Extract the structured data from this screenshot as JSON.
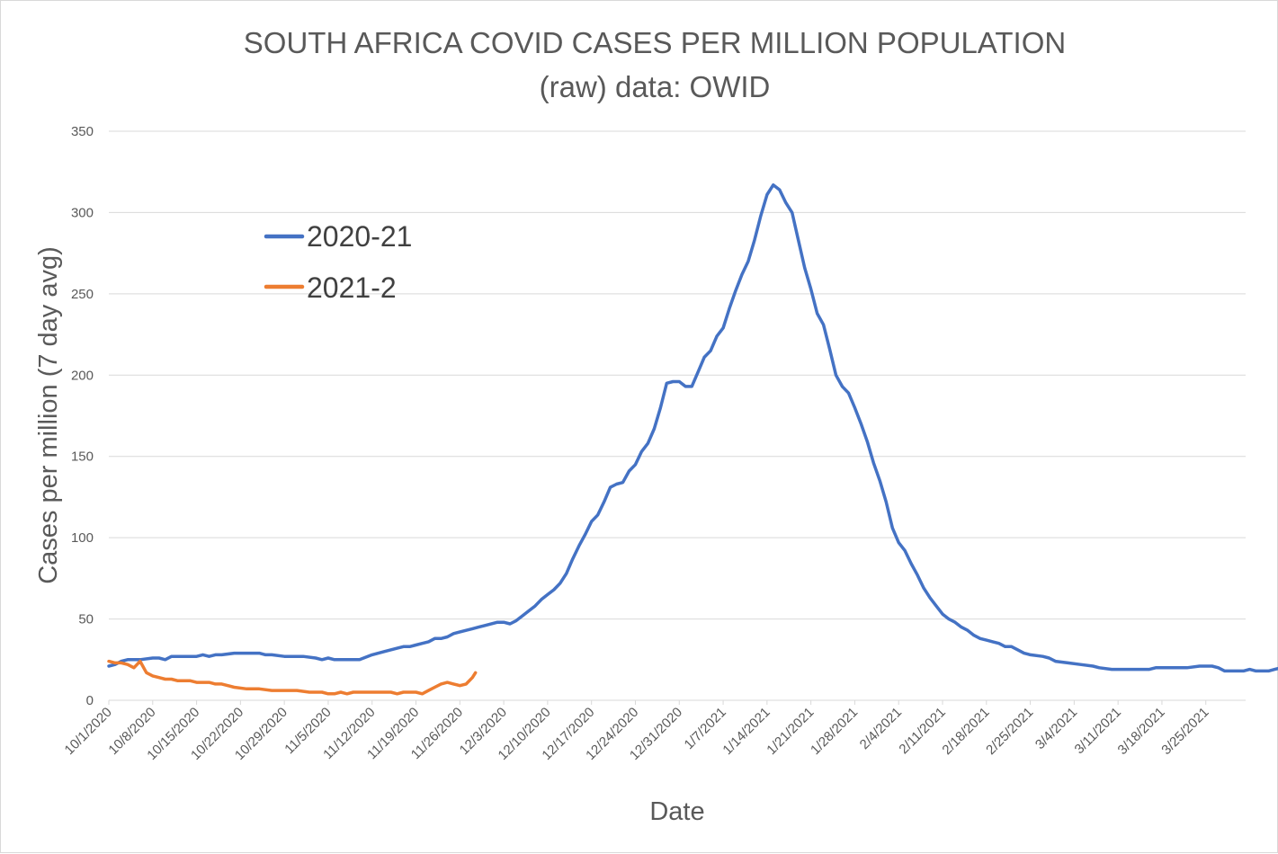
{
  "chart_data": {
    "type": "line",
    "title": "SOUTH AFRICA COVID CASES PER MILLION POPULATION",
    "subtitle": "(raw)  data: OWID",
    "xlabel": "Date",
    "ylabel": "Cases per million (7 day avg)",
    "ylim": [
      0,
      350
    ],
    "yticks": [
      0,
      50,
      100,
      150,
      200,
      250,
      300,
      350
    ],
    "grid": true,
    "legend_position": "top-left",
    "x_start": "10/1/2020",
    "x_days": 183,
    "x_ticks": [
      {
        "day": 0,
        "label": "10/1/2020"
      },
      {
        "day": 7,
        "label": "10/8/2020"
      },
      {
        "day": 14,
        "label": "10/15/2020"
      },
      {
        "day": 21,
        "label": "10/22/2020"
      },
      {
        "day": 28,
        "label": "10/29/2020"
      },
      {
        "day": 35,
        "label": "11/5/2020"
      },
      {
        "day": 42,
        "label": "11/12/2020"
      },
      {
        "day": 49,
        "label": "11/19/2020"
      },
      {
        "day": 56,
        "label": "11/26/2020"
      },
      {
        "day": 63,
        "label": "12/3/2020"
      },
      {
        "day": 70,
        "label": "12/10/2020"
      },
      {
        "day": 77,
        "label": "12/17/2020"
      },
      {
        "day": 84,
        "label": "12/24/2020"
      },
      {
        "day": 91,
        "label": "12/31/2020"
      },
      {
        "day": 98,
        "label": "1/7/2021"
      },
      {
        "day": 105,
        "label": "1/14/2021"
      },
      {
        "day": 112,
        "label": "1/21/2021"
      },
      {
        "day": 119,
        "label": "1/28/2021"
      },
      {
        "day": 126,
        "label": "2/4/2021"
      },
      {
        "day": 133,
        "label": "2/11/2021"
      },
      {
        "day": 140,
        "label": "2/18/2021"
      },
      {
        "day": 147,
        "label": "2/25/2021"
      },
      {
        "day": 154,
        "label": "3/4/2021"
      },
      {
        "day": 161,
        "label": "3/11/2021"
      },
      {
        "day": 168,
        "label": "3/18/2021"
      },
      {
        "day": 175,
        "label": "3/25/2021"
      }
    ],
    "series": [
      {
        "name": "2020-21",
        "color": "#4472C4",
        "points": [
          [
            0,
            21
          ],
          [
            1,
            22
          ],
          [
            2,
            24
          ],
          [
            3,
            25
          ],
          [
            5,
            25
          ],
          [
            7,
            26
          ],
          [
            8,
            26
          ],
          [
            9,
            25
          ],
          [
            10,
            27
          ],
          [
            12,
            27
          ],
          [
            14,
            27
          ],
          [
            15,
            28
          ],
          [
            16,
            27
          ],
          [
            17,
            28
          ],
          [
            18,
            28
          ],
          [
            20,
            29
          ],
          [
            22,
            29
          ],
          [
            24,
            29
          ],
          [
            25,
            28
          ],
          [
            26,
            28
          ],
          [
            28,
            27
          ],
          [
            30,
            27
          ],
          [
            31,
            27
          ],
          [
            33,
            26
          ],
          [
            34,
            25
          ],
          [
            35,
            26
          ],
          [
            36,
            25
          ],
          [
            38,
            25
          ],
          [
            40,
            25
          ],
          [
            42,
            28
          ],
          [
            44,
            30
          ],
          [
            46,
            32
          ],
          [
            47,
            33
          ],
          [
            48,
            33
          ],
          [
            49,
            34
          ],
          [
            50,
            35
          ],
          [
            51,
            36
          ],
          [
            52,
            38
          ],
          [
            53,
            38
          ],
          [
            54,
            39
          ],
          [
            55,
            41
          ],
          [
            57,
            43
          ],
          [
            58,
            44
          ],
          [
            59,
            45
          ],
          [
            60,
            46
          ],
          [
            62,
            48
          ],
          [
            63,
            48
          ],
          [
            64,
            47
          ],
          [
            65,
            49
          ],
          [
            66,
            52
          ],
          [
            67,
            55
          ],
          [
            68,
            58
          ],
          [
            69,
            62
          ],
          [
            70,
            65
          ],
          [
            71,
            68
          ],
          [
            72,
            72
          ],
          [
            73,
            78
          ],
          [
            74,
            87
          ],
          [
            75,
            95
          ],
          [
            76,
            102
          ],
          [
            77,
            110
          ],
          [
            78,
            114
          ],
          [
            79,
            122
          ],
          [
            80,
            131
          ],
          [
            81,
            133
          ],
          [
            82,
            134
          ],
          [
            83,
            141
          ],
          [
            84,
            145
          ],
          [
            85,
            153
          ],
          [
            86,
            158
          ],
          [
            87,
            167
          ],
          [
            88,
            180
          ],
          [
            89,
            195
          ],
          [
            90,
            196
          ],
          [
            91,
            196
          ],
          [
            92,
            193
          ],
          [
            93,
            193
          ],
          [
            94,
            202
          ],
          [
            95,
            211
          ],
          [
            96,
            215
          ],
          [
            97,
            224
          ],
          [
            98,
            229
          ],
          [
            99,
            241
          ],
          [
            100,
            252
          ],
          [
            101,
            262
          ],
          [
            102,
            270
          ],
          [
            103,
            283
          ],
          [
            104,
            298
          ],
          [
            105,
            311
          ],
          [
            106,
            317
          ],
          [
            107,
            314
          ],
          [
            108,
            306
          ],
          [
            109,
            300
          ],
          [
            110,
            283
          ],
          [
            111,
            266
          ],
          [
            112,
            253
          ],
          [
            113,
            238
          ],
          [
            114,
            231
          ],
          [
            115,
            216
          ],
          [
            116,
            200
          ],
          [
            117,
            193
          ],
          [
            118,
            189
          ],
          [
            119,
            180
          ],
          [
            120,
            170
          ],
          [
            121,
            159
          ],
          [
            122,
            146
          ],
          [
            123,
            135
          ],
          [
            124,
            122
          ],
          [
            125,
            106
          ],
          [
            126,
            97
          ],
          [
            127,
            92
          ],
          [
            128,
            84
          ],
          [
            129,
            77
          ],
          [
            130,
            69
          ],
          [
            131,
            63
          ],
          [
            132,
            58
          ],
          [
            133,
            53
          ],
          [
            134,
            50
          ],
          [
            135,
            48
          ],
          [
            136,
            45
          ],
          [
            137,
            43
          ],
          [
            138,
            40
          ],
          [
            139,
            38
          ],
          [
            140,
            37
          ],
          [
            141,
            36
          ],
          [
            142,
            35
          ],
          [
            143,
            33
          ],
          [
            144,
            33
          ],
          [
            145,
            31
          ],
          [
            146,
            29
          ],
          [
            147,
            28
          ],
          [
            149,
            27
          ],
          [
            150,
            26
          ],
          [
            151,
            24
          ],
          [
            153,
            23
          ],
          [
            155,
            22
          ],
          [
            157,
            21
          ],
          [
            158,
            20
          ],
          [
            160,
            19
          ],
          [
            162,
            19
          ],
          [
            163,
            19
          ],
          [
            164,
            19
          ],
          [
            166,
            19
          ],
          [
            167,
            20
          ],
          [
            168,
            20
          ],
          [
            170,
            20
          ],
          [
            172,
            20
          ],
          [
            174,
            21
          ],
          [
            176,
            21
          ],
          [
            177,
            20
          ],
          [
            178,
            18
          ],
          [
            180,
            18
          ],
          [
            181,
            18
          ],
          [
            182,
            19
          ],
          [
            183,
            18
          ],
          [
            184,
            18
          ],
          [
            185,
            18
          ],
          [
            186,
            19
          ],
          [
            187,
            20
          ]
        ]
      },
      {
        "name": "2021-2",
        "color": "#ED7D31",
        "points": [
          [
            0,
            24
          ],
          [
            1,
            23
          ],
          [
            2,
            23
          ],
          [
            3,
            22
          ],
          [
            4,
            20
          ],
          [
            5,
            24
          ],
          [
            6,
            17
          ],
          [
            7,
            15
          ],
          [
            8,
            14
          ],
          [
            9,
            13
          ],
          [
            10,
            13
          ],
          [
            11,
            12
          ],
          [
            12,
            12
          ],
          [
            13,
            12
          ],
          [
            14,
            11
          ],
          [
            15,
            11
          ],
          [
            16,
            11
          ],
          [
            17,
            10
          ],
          [
            18,
            10
          ],
          [
            19,
            9
          ],
          [
            20,
            8
          ],
          [
            22,
            7
          ],
          [
            24,
            7
          ],
          [
            26,
            6
          ],
          [
            28,
            6
          ],
          [
            30,
            6
          ],
          [
            32,
            5
          ],
          [
            34,
            5
          ],
          [
            35,
            4
          ],
          [
            36,
            4
          ],
          [
            37,
            5
          ],
          [
            38,
            4
          ],
          [
            39,
            5
          ],
          [
            40,
            5
          ],
          [
            42,
            5
          ],
          [
            44,
            5
          ],
          [
            45,
            5
          ],
          [
            46,
            4
          ],
          [
            47,
            5
          ],
          [
            48,
            5
          ],
          [
            49,
            5
          ],
          [
            50,
            4
          ],
          [
            51,
            6
          ],
          [
            52,
            8
          ],
          [
            53,
            10
          ],
          [
            54,
            11
          ],
          [
            55,
            10
          ],
          [
            56,
            9
          ],
          [
            57,
            10
          ],
          [
            58,
            14
          ],
          [
            58.5,
            17
          ]
        ]
      }
    ]
  }
}
